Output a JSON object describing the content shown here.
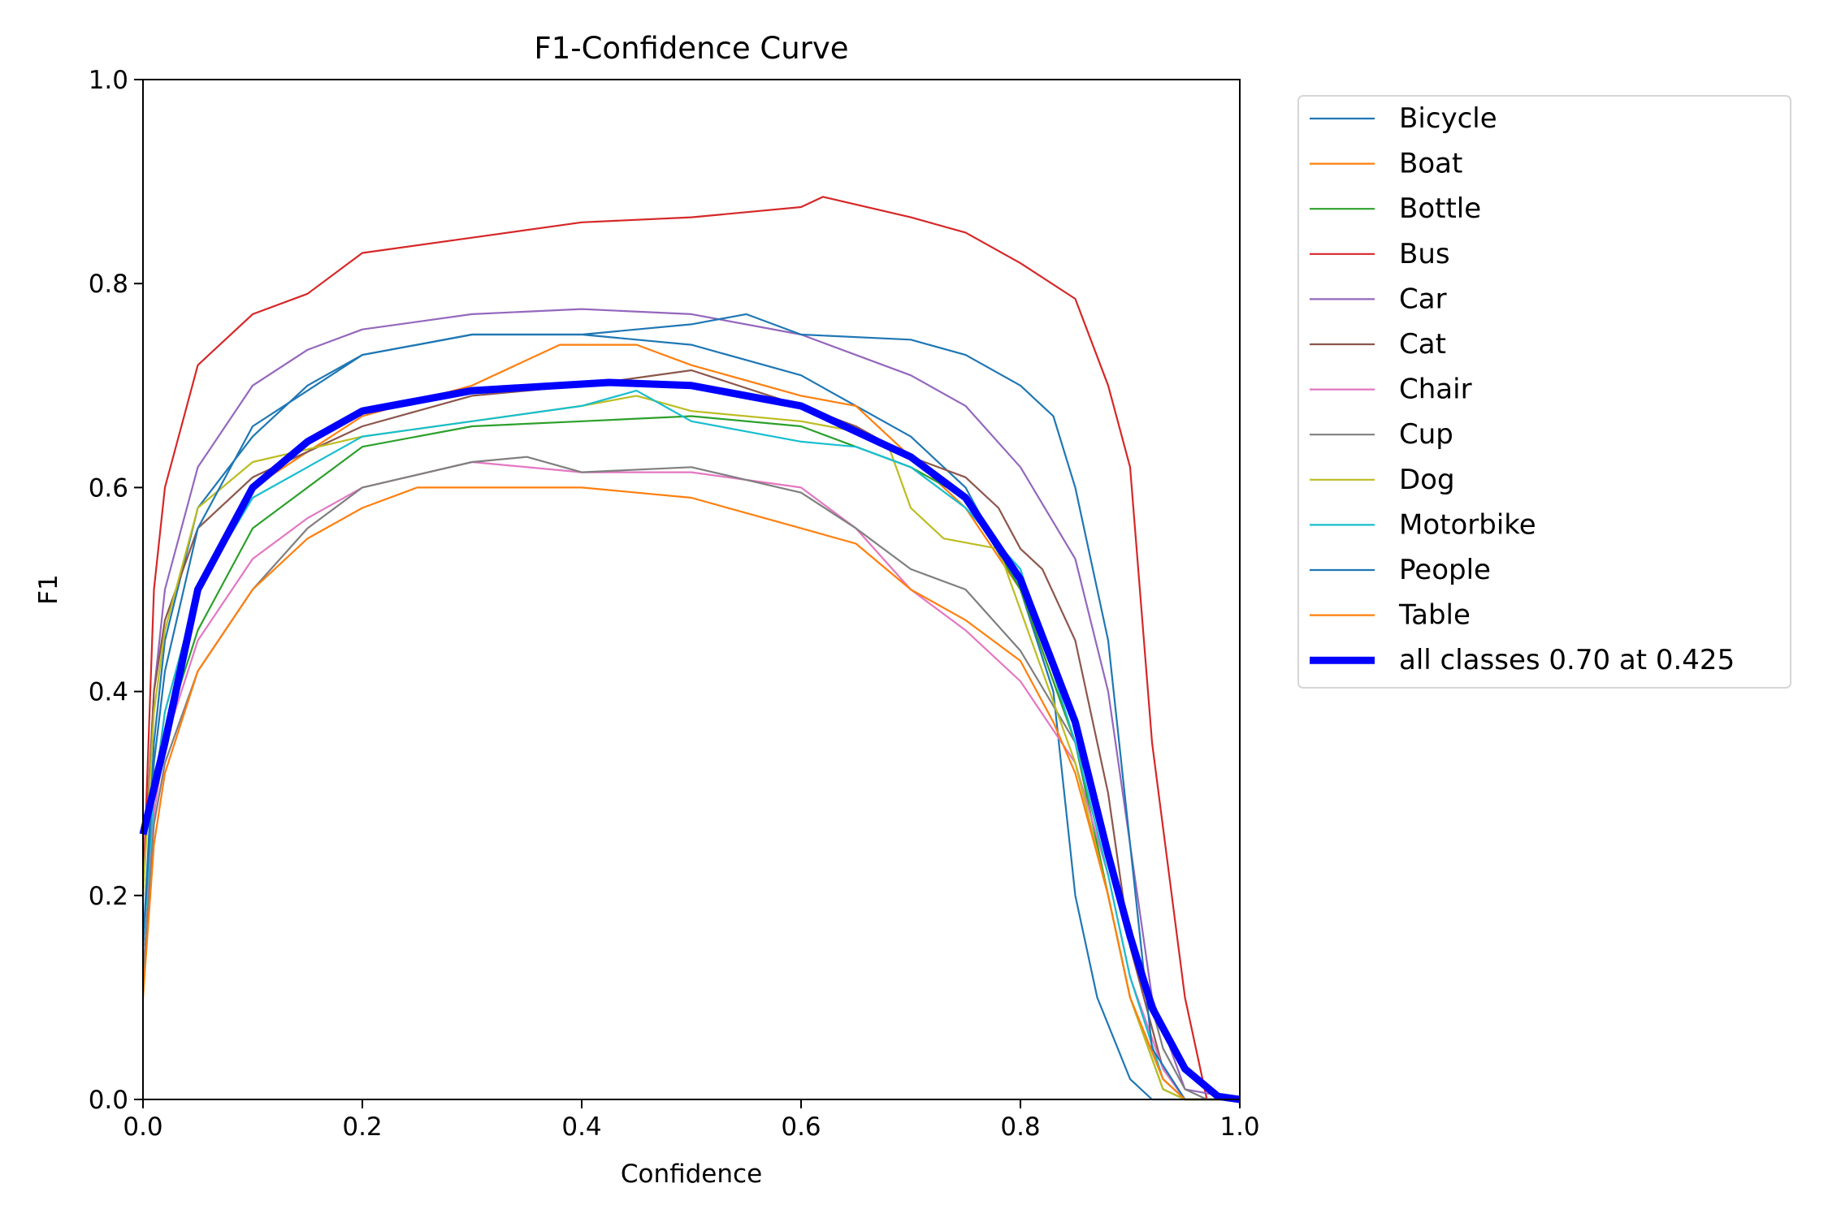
{
  "chart_data": {
    "type": "line",
    "title": "F1-Confidence Curve",
    "xlabel": "Confidence",
    "ylabel": "F1",
    "xlim": [
      0,
      1
    ],
    "ylim": [
      0,
      1
    ],
    "xticks": [
      "0.0",
      "0.2",
      "0.4",
      "0.6",
      "0.8",
      "1.0"
    ],
    "yticks": [
      "0.0",
      "0.2",
      "0.4",
      "0.6",
      "0.8",
      "1.0"
    ],
    "grid": false,
    "legend_placement": "outside-right-top",
    "series": [
      {
        "name": "Bicycle",
        "color": "#1f77b4",
        "points": [
          [
            0,
            0.15
          ],
          [
            0.01,
            0.35
          ],
          [
            0.02,
            0.45
          ],
          [
            0.05,
            0.58
          ],
          [
            0.1,
            0.65
          ],
          [
            0.15,
            0.7
          ],
          [
            0.2,
            0.73
          ],
          [
            0.3,
            0.75
          ],
          [
            0.4,
            0.75
          ],
          [
            0.5,
            0.74
          ],
          [
            0.6,
            0.71
          ],
          [
            0.7,
            0.65
          ],
          [
            0.75,
            0.6
          ],
          [
            0.8,
            0.5
          ],
          [
            0.83,
            0.4
          ],
          [
            0.85,
            0.2
          ],
          [
            0.87,
            0.1
          ],
          [
            0.9,
            0.02
          ],
          [
            0.92,
            0
          ],
          [
            1,
            0
          ]
        ]
      },
      {
        "name": "Boat",
        "color": "#ff7f0e",
        "points": [
          [
            0,
            0.1
          ],
          [
            0.01,
            0.3
          ],
          [
            0.02,
            0.38
          ],
          [
            0.05,
            0.5
          ],
          [
            0.1,
            0.6
          ],
          [
            0.2,
            0.67
          ],
          [
            0.3,
            0.7
          ],
          [
            0.38,
            0.74
          ],
          [
            0.45,
            0.74
          ],
          [
            0.5,
            0.72
          ],
          [
            0.6,
            0.69
          ],
          [
            0.65,
            0.68
          ],
          [
            0.7,
            0.63
          ],
          [
            0.75,
            0.58
          ],
          [
            0.8,
            0.5
          ],
          [
            0.85,
            0.35
          ],
          [
            0.88,
            0.2
          ],
          [
            0.9,
            0.1
          ],
          [
            0.93,
            0.02
          ],
          [
            0.95,
            0
          ],
          [
            1,
            0
          ]
        ]
      },
      {
        "name": "Bottle",
        "color": "#2ca02c",
        "points": [
          [
            0,
            0.15
          ],
          [
            0.01,
            0.3
          ],
          [
            0.02,
            0.36
          ],
          [
            0.05,
            0.46
          ],
          [
            0.1,
            0.56
          ],
          [
            0.15,
            0.6
          ],
          [
            0.2,
            0.64
          ],
          [
            0.3,
            0.66
          ],
          [
            0.4,
            0.665
          ],
          [
            0.5,
            0.67
          ],
          [
            0.6,
            0.66
          ],
          [
            0.7,
            0.62
          ],
          [
            0.75,
            0.59
          ],
          [
            0.8,
            0.5
          ],
          [
            0.85,
            0.35
          ],
          [
            0.88,
            0.2
          ],
          [
            0.9,
            0.1
          ],
          [
            0.93,
            0.01
          ],
          [
            0.95,
            0
          ],
          [
            1,
            0
          ]
        ]
      },
      {
        "name": "Bus",
        "color": "#d62728",
        "points": [
          [
            0,
            0.2
          ],
          [
            0.01,
            0.5
          ],
          [
            0.02,
            0.6
          ],
          [
            0.05,
            0.72
          ],
          [
            0.1,
            0.77
          ],
          [
            0.15,
            0.79
          ],
          [
            0.2,
            0.83
          ],
          [
            0.3,
            0.845
          ],
          [
            0.4,
            0.86
          ],
          [
            0.5,
            0.865
          ],
          [
            0.6,
            0.875
          ],
          [
            0.62,
            0.885
          ],
          [
            0.7,
            0.865
          ],
          [
            0.75,
            0.85
          ],
          [
            0.8,
            0.82
          ],
          [
            0.85,
            0.785
          ],
          [
            0.88,
            0.7
          ],
          [
            0.9,
            0.62
          ],
          [
            0.92,
            0.35
          ],
          [
            0.95,
            0.1
          ],
          [
            0.97,
            0
          ],
          [
            1,
            0
          ]
        ]
      },
      {
        "name": "Car",
        "color": "#9467bd",
        "points": [
          [
            0,
            0.2
          ],
          [
            0.01,
            0.4
          ],
          [
            0.02,
            0.5
          ],
          [
            0.05,
            0.62
          ],
          [
            0.1,
            0.7
          ],
          [
            0.15,
            0.735
          ],
          [
            0.2,
            0.755
          ],
          [
            0.3,
            0.77
          ],
          [
            0.4,
            0.775
          ],
          [
            0.5,
            0.77
          ],
          [
            0.6,
            0.75
          ],
          [
            0.7,
            0.71
          ],
          [
            0.75,
            0.68
          ],
          [
            0.8,
            0.62
          ],
          [
            0.85,
            0.53
          ],
          [
            0.88,
            0.4
          ],
          [
            0.9,
            0.25
          ],
          [
            0.92,
            0.1
          ],
          [
            0.95,
            0.01
          ],
          [
            1,
            0
          ]
        ]
      },
      {
        "name": "Cat",
        "color": "#8c564b",
        "points": [
          [
            0,
            0.2
          ],
          [
            0.01,
            0.4
          ],
          [
            0.02,
            0.47
          ],
          [
            0.05,
            0.56
          ],
          [
            0.1,
            0.61
          ],
          [
            0.2,
            0.66
          ],
          [
            0.3,
            0.69
          ],
          [
            0.4,
            0.7
          ],
          [
            0.5,
            0.715
          ],
          [
            0.6,
            0.68
          ],
          [
            0.65,
            0.66
          ],
          [
            0.7,
            0.63
          ],
          [
            0.75,
            0.61
          ],
          [
            0.78,
            0.58
          ],
          [
            0.8,
            0.54
          ],
          [
            0.82,
            0.52
          ],
          [
            0.85,
            0.45
          ],
          [
            0.88,
            0.3
          ],
          [
            0.9,
            0.15
          ],
          [
            0.93,
            0.03
          ],
          [
            0.95,
            0
          ],
          [
            1,
            0
          ]
        ]
      },
      {
        "name": "Chair",
        "color": "#e377c2",
        "points": [
          [
            0,
            0.12
          ],
          [
            0.01,
            0.28
          ],
          [
            0.02,
            0.35
          ],
          [
            0.05,
            0.45
          ],
          [
            0.1,
            0.53
          ],
          [
            0.15,
            0.57
          ],
          [
            0.2,
            0.6
          ],
          [
            0.3,
            0.625
          ],
          [
            0.4,
            0.615
          ],
          [
            0.5,
            0.615
          ],
          [
            0.6,
            0.6
          ],
          [
            0.65,
            0.56
          ],
          [
            0.7,
            0.5
          ],
          [
            0.75,
            0.46
          ],
          [
            0.8,
            0.41
          ],
          [
            0.85,
            0.33
          ],
          [
            0.88,
            0.22
          ],
          [
            0.9,
            0.12
          ],
          [
            0.93,
            0.03
          ],
          [
            0.95,
            0
          ],
          [
            1,
            0
          ]
        ]
      },
      {
        "name": "Cup",
        "color": "#7f7f7f",
        "points": [
          [
            0,
            0.12
          ],
          [
            0.01,
            0.27
          ],
          [
            0.02,
            0.33
          ],
          [
            0.05,
            0.42
          ],
          [
            0.1,
            0.5
          ],
          [
            0.15,
            0.56
          ],
          [
            0.2,
            0.6
          ],
          [
            0.3,
            0.625
          ],
          [
            0.35,
            0.63
          ],
          [
            0.4,
            0.615
          ],
          [
            0.5,
            0.62
          ],
          [
            0.6,
            0.595
          ],
          [
            0.65,
            0.56
          ],
          [
            0.7,
            0.52
          ],
          [
            0.75,
            0.5
          ],
          [
            0.8,
            0.44
          ],
          [
            0.85,
            0.35
          ],
          [
            0.88,
            0.25
          ],
          [
            0.9,
            0.17
          ],
          [
            0.93,
            0.05
          ],
          [
            0.95,
            0.01
          ],
          [
            0.97,
            0
          ],
          [
            1,
            0
          ]
        ]
      },
      {
        "name": "Dog",
        "color": "#bcbd22",
        "points": [
          [
            0,
            0.2
          ],
          [
            0.01,
            0.38
          ],
          [
            0.02,
            0.46
          ],
          [
            0.05,
            0.58
          ],
          [
            0.1,
            0.625
          ],
          [
            0.2,
            0.65
          ],
          [
            0.3,
            0.665
          ],
          [
            0.4,
            0.68
          ],
          [
            0.45,
            0.69
          ],
          [
            0.5,
            0.675
          ],
          [
            0.6,
            0.665
          ],
          [
            0.65,
            0.655
          ],
          [
            0.68,
            0.64
          ],
          [
            0.7,
            0.58
          ],
          [
            0.73,
            0.55
          ],
          [
            0.78,
            0.54
          ],
          [
            0.8,
            0.48
          ],
          [
            0.85,
            0.33
          ],
          [
            0.88,
            0.2
          ],
          [
            0.9,
            0.1
          ],
          [
            0.93,
            0.01
          ],
          [
            0.95,
            0
          ],
          [
            1,
            0
          ]
        ]
      },
      {
        "name": "Motorbike",
        "color": "#17becf",
        "points": [
          [
            0,
            0.15
          ],
          [
            0.01,
            0.3
          ],
          [
            0.02,
            0.38
          ],
          [
            0.05,
            0.5
          ],
          [
            0.1,
            0.59
          ],
          [
            0.2,
            0.65
          ],
          [
            0.3,
            0.665
          ],
          [
            0.4,
            0.68
          ],
          [
            0.45,
            0.695
          ],
          [
            0.5,
            0.665
          ],
          [
            0.6,
            0.645
          ],
          [
            0.65,
            0.64
          ],
          [
            0.7,
            0.62
          ],
          [
            0.75,
            0.58
          ],
          [
            0.8,
            0.52
          ],
          [
            0.85,
            0.35
          ],
          [
            0.88,
            0.22
          ],
          [
            0.9,
            0.12
          ],
          [
            0.93,
            0.02
          ],
          [
            0.95,
            0
          ],
          [
            1,
            0
          ]
        ]
      },
      {
        "name": "People",
        "color": "#1f77b4",
        "points": [
          [
            0,
            0.15
          ],
          [
            0.01,
            0.33
          ],
          [
            0.02,
            0.42
          ],
          [
            0.05,
            0.56
          ],
          [
            0.1,
            0.66
          ],
          [
            0.2,
            0.73
          ],
          [
            0.3,
            0.75
          ],
          [
            0.4,
            0.75
          ],
          [
            0.5,
            0.76
          ],
          [
            0.55,
            0.77
          ],
          [
            0.6,
            0.75
          ],
          [
            0.7,
            0.745
          ],
          [
            0.75,
            0.73
          ],
          [
            0.8,
            0.7
          ],
          [
            0.83,
            0.67
          ],
          [
            0.85,
            0.6
          ],
          [
            0.88,
            0.45
          ],
          [
            0.9,
            0.25
          ],
          [
            0.92,
            0.05
          ],
          [
            0.95,
            0
          ],
          [
            1,
            0
          ]
        ]
      },
      {
        "name": "Table",
        "color": "#ff7f0e",
        "points": [
          [
            0,
            0.1
          ],
          [
            0.01,
            0.25
          ],
          [
            0.02,
            0.32
          ],
          [
            0.05,
            0.42
          ],
          [
            0.1,
            0.5
          ],
          [
            0.15,
            0.55
          ],
          [
            0.2,
            0.58
          ],
          [
            0.25,
            0.6
          ],
          [
            0.3,
            0.6
          ],
          [
            0.4,
            0.6
          ],
          [
            0.5,
            0.59
          ],
          [
            0.6,
            0.56
          ],
          [
            0.65,
            0.545
          ],
          [
            0.7,
            0.5
          ],
          [
            0.75,
            0.47
          ],
          [
            0.8,
            0.43
          ],
          [
            0.83,
            0.37
          ],
          [
            0.85,
            0.32
          ],
          [
            0.88,
            0.2
          ],
          [
            0.9,
            0.1
          ],
          [
            0.93,
            0.02
          ],
          [
            0.95,
            0
          ],
          [
            1,
            0
          ]
        ]
      },
      {
        "name": "all classes 0.70 at 0.425",
        "color": "#0000ff",
        "thick": true,
        "points": [
          [
            0,
            0.26
          ],
          [
            0.02,
            0.35
          ],
          [
            0.05,
            0.5
          ],
          [
            0.1,
            0.6
          ],
          [
            0.15,
            0.645
          ],
          [
            0.2,
            0.675
          ],
          [
            0.3,
            0.695
          ],
          [
            0.425,
            0.703
          ],
          [
            0.5,
            0.7
          ],
          [
            0.6,
            0.68
          ],
          [
            0.7,
            0.63
          ],
          [
            0.75,
            0.59
          ],
          [
            0.8,
            0.51
          ],
          [
            0.85,
            0.37
          ],
          [
            0.88,
            0.24
          ],
          [
            0.9,
            0.16
          ],
          [
            0.92,
            0.09
          ],
          [
            0.95,
            0.03
          ],
          [
            0.98,
            0.003
          ],
          [
            1,
            0
          ]
        ]
      }
    ]
  }
}
